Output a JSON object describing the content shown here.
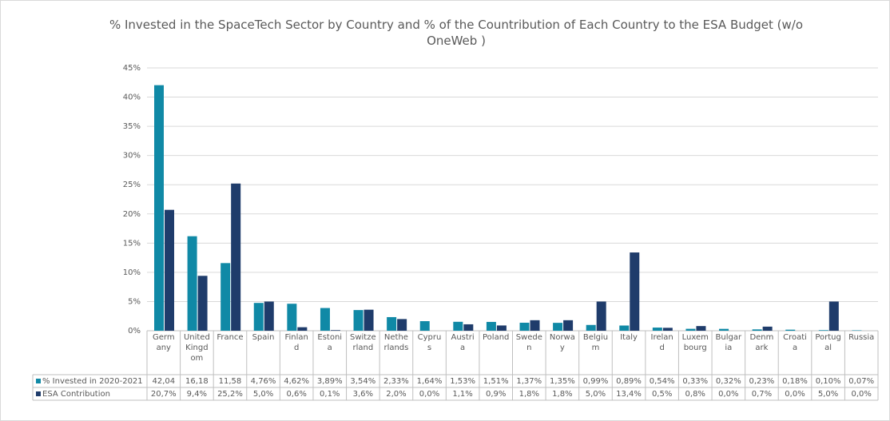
{
  "chart_data": {
    "type": "bar",
    "title": "% Invested in the SpaceTech Sector by Country and % of the Countribution of Each Country to the ESA Budget (w/o OneWeb )",
    "categories": [
      "Germany",
      "United Kingdom",
      "France",
      "Spain",
      "Finland",
      "Estonia",
      "Switzerland",
      "Netherlands",
      "Cyprus",
      "Austria",
      "Poland",
      "Sweden",
      "Norway",
      "Belgium",
      "Italy",
      "Ireland",
      "Luxembourg",
      "Bulgaria",
      "Denmark",
      "Croatia",
      "Portugal",
      "Russia"
    ],
    "series": [
      {
        "name": "% Invested in 2020-2021",
        "color": "#1089a6",
        "values": [
          42.04,
          16.18,
          11.58,
          4.76,
          4.62,
          3.89,
          3.54,
          2.33,
          1.64,
          1.53,
          1.51,
          1.37,
          1.35,
          0.99,
          0.89,
          0.54,
          0.33,
          0.32,
          0.23,
          0.18,
          0.1,
          0.07
        ],
        "value_labels": [
          "42,04",
          "16,18",
          "11,58",
          "4,76%",
          "4,62%",
          "3,89%",
          "3,54%",
          "2,33%",
          "1,64%",
          "1,53%",
          "1,51%",
          "1,37%",
          "1,35%",
          "0,99%",
          "0,89%",
          "0,54%",
          "0,33%",
          "0,32%",
          "0,23%",
          "0,18%",
          "0,10%",
          "0,07%"
        ]
      },
      {
        "name": "ESA Contribution",
        "color": "#1f3c6b",
        "values": [
          20.7,
          9.4,
          25.2,
          5.0,
          0.6,
          0.1,
          3.6,
          2.0,
          0.0,
          1.1,
          0.9,
          1.8,
          1.8,
          5.0,
          13.4,
          0.5,
          0.8,
          0.0,
          0.7,
          0.0,
          5.0,
          0.0
        ],
        "value_labels": [
          "20,7%",
          "9,4%",
          "25,2%",
          "5,0%",
          "0,6%",
          "0,1%",
          "3,6%",
          "2,0%",
          "0,0%",
          "1,1%",
          "0,9%",
          "1,8%",
          "1,8%",
          "5,0%",
          "13,4%",
          "0,5%",
          "0,8%",
          "0,0%",
          "0,7%",
          "0,0%",
          "5,0%",
          "0,0%"
        ]
      }
    ],
    "ylim": [
      0,
      45
    ],
    "yticks": [
      {
        "value": 0,
        "label": "0%"
      },
      {
        "value": 5,
        "label": "5%"
      },
      {
        "value": 10,
        "label": "10%"
      },
      {
        "value": 15,
        "label": "15%"
      },
      {
        "value": 20,
        "label": "20%"
      },
      {
        "value": 25,
        "label": "25%"
      },
      {
        "value": 30,
        "label": "30%"
      },
      {
        "value": 35,
        "label": "35%"
      },
      {
        "value": 40,
        "label": "40%"
      },
      {
        "value": 45,
        "label": "45%"
      }
    ],
    "grid": true
  }
}
